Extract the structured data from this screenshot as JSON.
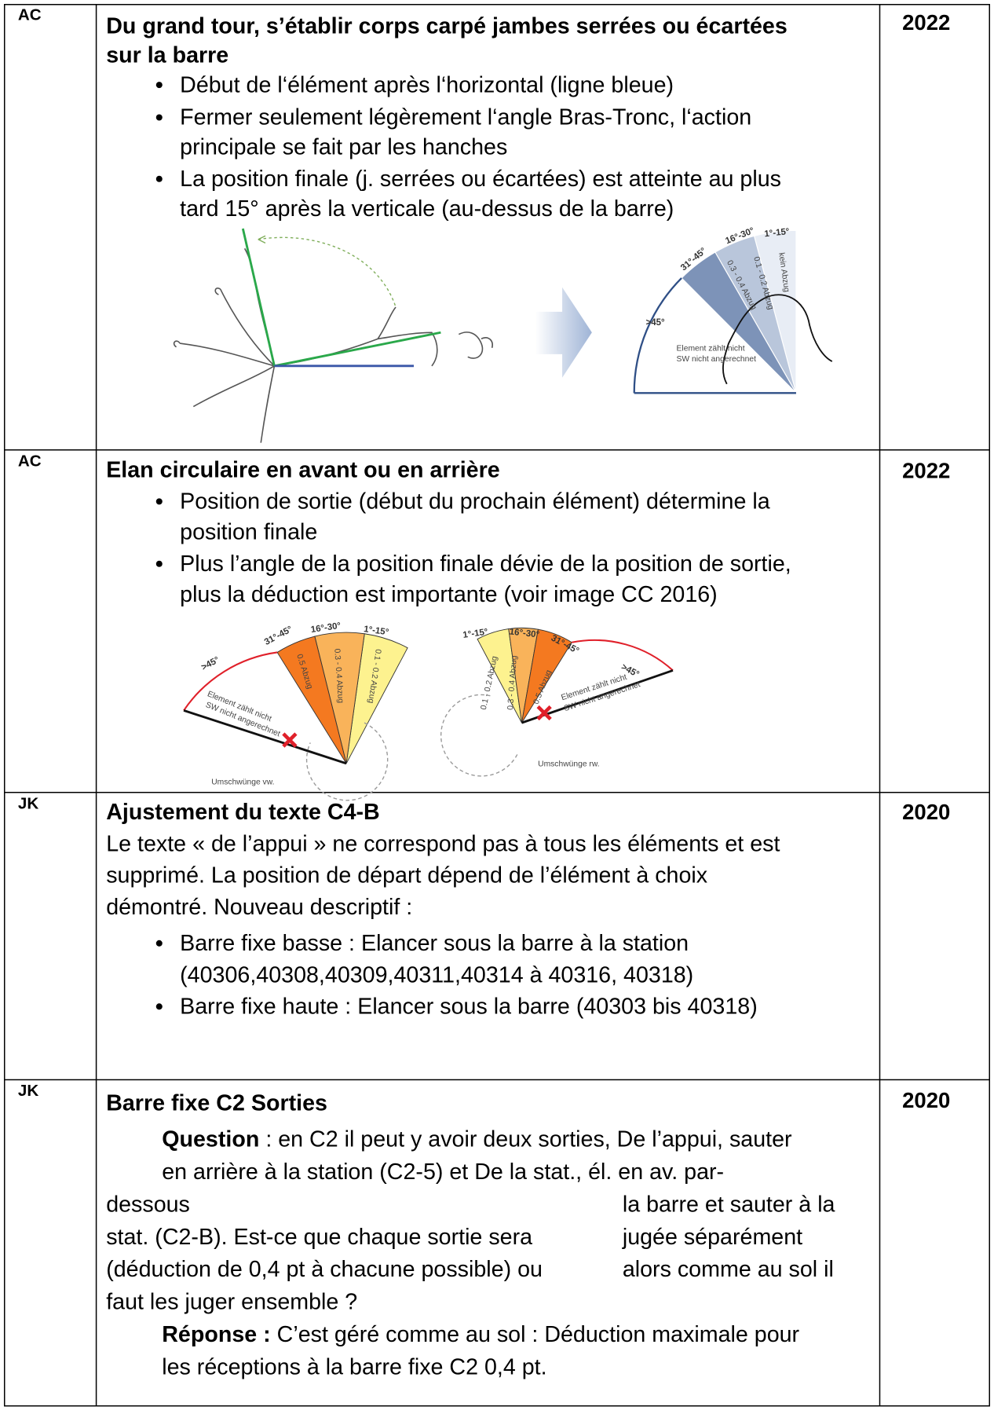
{
  "rows": [
    {
      "code": "AC",
      "year": "2022",
      "title": [
        "Du grand tour, s’établir corps carpé jambes serrées ou écartées",
        "sur la barre"
      ],
      "bullets": [
        [
          "Début de l‘élément après l‘horizontal (ligne bleue)"
        ],
        [
          "Fermer seulement légèrement l‘angle Bras-Tronc, l‘action",
          "principale se fait par les hanches"
        ],
        [
          "La position finale (j. serrées ou écartées) est atteinte au plus",
          "tard 15° après la verticale (au-dessus de la barre)"
        ]
      ],
      "figure": {
        "labels": [
          ">45°",
          "31°-45°",
          "16°-30°",
          "1°-15°",
          "0.3 - 0.4 Abzug",
          "0.1 - 0.2 Abzug",
          "kein Abzug",
          "Element zählt nicht",
          "SW nicht angerechnet"
        ]
      }
    },
    {
      "code": "AC",
      "year": "2022",
      "title": [
        "Elan circulaire en avant ou en arrière"
      ],
      "bullets": [
        [
          "Position de sortie (début du prochain élément) détermine la",
          "position finale"
        ],
        [
          "Plus l’angle de la position finale dévie de la position de sortie,",
          "plus la déduction est importante (voir image CC 2016)"
        ]
      ],
      "figures": [
        {
          "labels": [
            ">45°",
            "31°-45°",
            "16°-30°",
            "1°-15°",
            "0.5 Abzug",
            "0.3 - 0.4 Abzug",
            "0.1 - 0.2 Abzug",
            "Element zählt nicht",
            "SW nicht angerechnet",
            "Umschwünge vw."
          ]
        },
        {
          "labels": [
            "1°-15°",
            "16°-30°",
            "31°-45°",
            ">45°",
            "0.1 - 0.2 Abzug",
            "0.3 - 0.4 Abzug",
            "0.5 Abzug",
            "Element zählt nicht",
            "SW nicht angerechnet",
            "Umschwünge rw."
          ]
        }
      ]
    },
    {
      "code": "JK",
      "year": "2020",
      "title": [
        "Ajustement du texte C4-B"
      ],
      "paragraph": [
        "Le texte « de l’appui » ne correspond pas à tous les éléments et est",
        "supprimé. La position de départ dépend de l’élément à choix",
        "démontré. Nouveau descriptif :"
      ],
      "bullets": [
        [
          "Barre fixe basse : Elancer sous la barre à la station",
          "(40306,40308,40309,40311,40314 à 40316, 40318)"
        ],
        [
          "Barre fixe haute : Elancer sous la barre (40303 bis 40318)"
        ]
      ]
    },
    {
      "code": "JK",
      "year": "2020",
      "title": [
        "Barre fixe C2 Sorties"
      ],
      "question_label": "Question",
      "question_lines": [
        ": en C2 il peut y avoir deux sorties, De l’appui, sauter",
        "en arrière à la station (C2-5) et De la stat., él. en av. par-",
        "dessous",
        "la barre et sauter à la",
        "stat. (C2-B). Est-ce que chaque sortie sera",
        "jugée séparément",
        "(déduction de 0,4 pt à chacune possible) ou",
        "alors comme au sol il",
        "faut les juger ensemble ?"
      ],
      "answer_label": "Réponse :",
      "answer_lines": [
        "C’est géré comme au sol : Déduction maximale pour",
        "les réceptions à la barre fixe C2 0,4 pt."
      ]
    }
  ]
}
